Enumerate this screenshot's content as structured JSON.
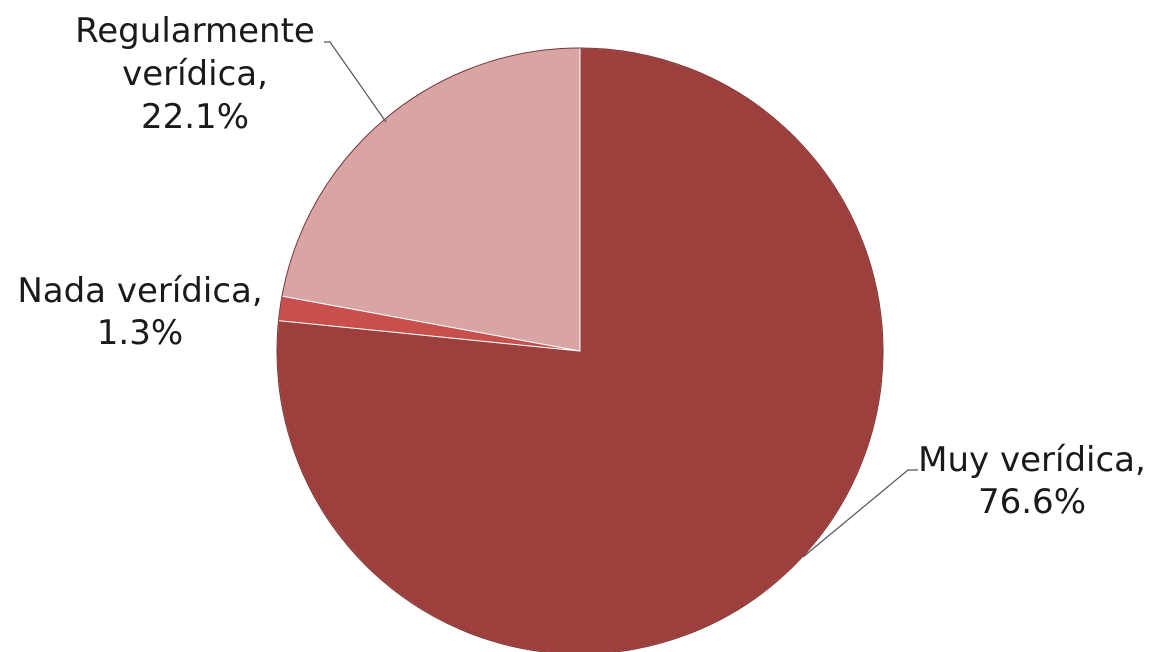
{
  "chart_data": {
    "type": "pie",
    "title": "",
    "slices": [
      {
        "label_lines": [
          "Muy verídica,",
          "76.6%"
        ],
        "category": "Muy verídica",
        "value": 76.6,
        "color": "#9c3f3d"
      },
      {
        "label_lines": [
          "Nada verídica,",
          "1.3%"
        ],
        "category": "Nada verídica",
        "value": 1.3,
        "color": "#c8504c"
      },
      {
        "label_lines": [
          "Regularmente",
          "verídica,",
          "22.1%"
        ],
        "category": "Regularmente verídica",
        "value": 22.1,
        "color": "#d9a4a4"
      }
    ],
    "start_angle": "12 o'clock",
    "direction": "clockwise",
    "legend": "none",
    "data_labels": "outside with leader lines"
  }
}
